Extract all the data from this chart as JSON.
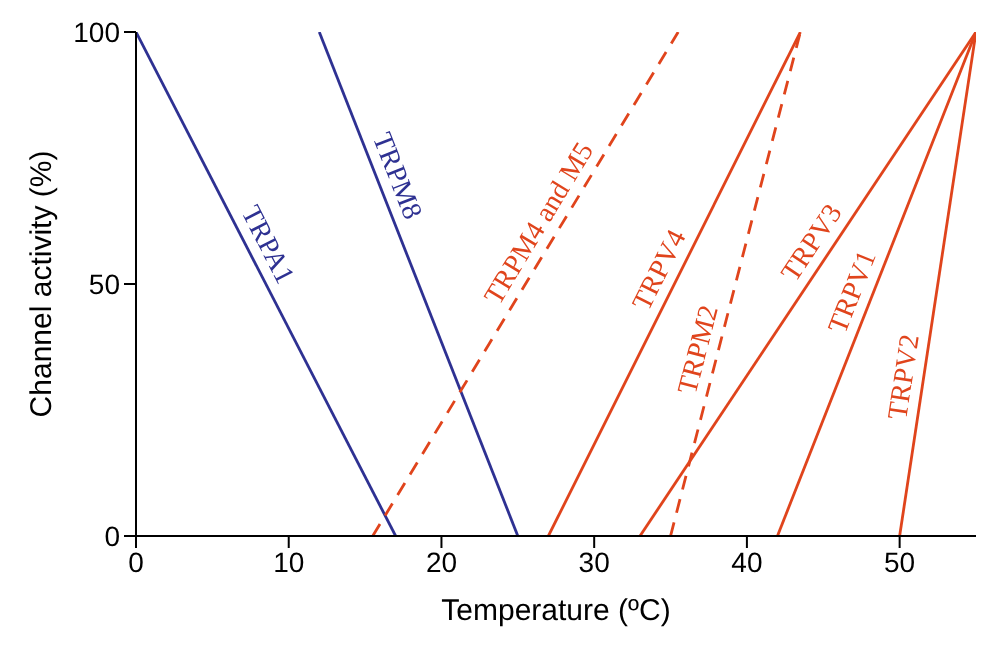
{
  "chart_data": {
    "type": "line",
    "xlabel": "Temperature (ºC)",
    "ylabel": "Channel activity (%)",
    "xlim": [
      0,
      55
    ],
    "xticks": [
      0,
      10,
      20,
      30,
      40,
      50
    ],
    "ylim": [
      0,
      100
    ],
    "yticks": [
      0,
      50,
      100
    ],
    "grid": false,
    "legend": false,
    "marker": "none",
    "series": [
      {
        "name": "TRPA1",
        "color": "#2e3192",
        "x": [
          0,
          17
        ],
        "values": [
          100,
          0
        ],
        "line_style": "solid"
      },
      {
        "name": "TRPM8",
        "color": "#2e3192",
        "x": [
          12,
          25
        ],
        "values": [
          100,
          0
        ],
        "line_style": "solid"
      },
      {
        "name": "TRPM4 and M5",
        "color": "#e0441c",
        "x": [
          15.5,
          35.5
        ],
        "values": [
          0,
          100
        ],
        "line_style": "dashed"
      },
      {
        "name": "TRPV4",
        "color": "#e0441c",
        "x": [
          27,
          43.5
        ],
        "values": [
          0,
          100
        ],
        "line_style": "solid"
      },
      {
        "name": "TRPM2",
        "color": "#e0441c",
        "x": [
          35,
          43.5
        ],
        "values": [
          0,
          100
        ],
        "line_style": "dashed"
      },
      {
        "name": "TRPV3",
        "color": "#e0441c",
        "x": [
          33,
          55
        ],
        "values": [
          0,
          100
        ],
        "line_style": "solid"
      },
      {
        "name": "TRPV1",
        "color": "#e0441c",
        "x": [
          42,
          55
        ],
        "values": [
          0,
          100
        ],
        "line_style": "solid"
      },
      {
        "name": "TRPV2",
        "color": "#e0441c",
        "x": [
          50,
          55
        ],
        "values": [
          0,
          100
        ],
        "line_style": "solid"
      }
    ]
  }
}
